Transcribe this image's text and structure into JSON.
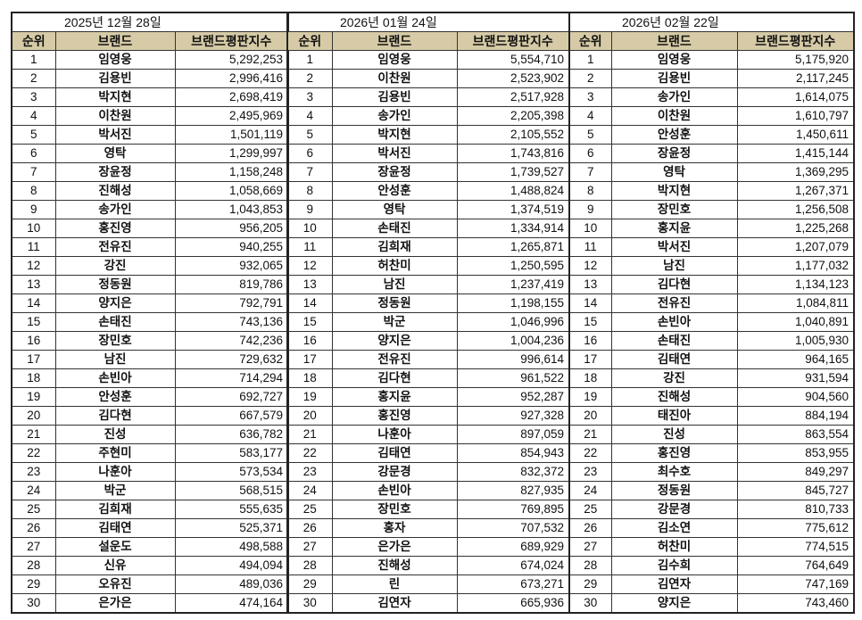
{
  "headers": {
    "rank": "순위",
    "brand": "브랜드",
    "score": "브랜드평판지수"
  },
  "header_color": "#d6cba6",
  "tables": [
    {
      "date": "2025년 12월 28일",
      "rows": [
        [
          "1",
          "임영웅",
          "5,292,253"
        ],
        [
          "2",
          "김용빈",
          "2,996,416"
        ],
        [
          "3",
          "박지현",
          "2,698,419"
        ],
        [
          "4",
          "이찬원",
          "2,495,969"
        ],
        [
          "5",
          "박서진",
          "1,501,119"
        ],
        [
          "6",
          "영탁",
          "1,299,997"
        ],
        [
          "7",
          "장윤정",
          "1,158,248"
        ],
        [
          "8",
          "진해성",
          "1,058,669"
        ],
        [
          "9",
          "송가인",
          "1,043,853"
        ],
        [
          "10",
          "홍진영",
          "956,205"
        ],
        [
          "11",
          "전유진",
          "940,255"
        ],
        [
          "12",
          "강진",
          "932,065"
        ],
        [
          "13",
          "정동원",
          "819,786"
        ],
        [
          "14",
          "양지은",
          "792,791"
        ],
        [
          "15",
          "손태진",
          "743,136"
        ],
        [
          "16",
          "장민호",
          "742,236"
        ],
        [
          "17",
          "남진",
          "729,632"
        ],
        [
          "18",
          "손빈아",
          "714,294"
        ],
        [
          "19",
          "안성훈",
          "692,727"
        ],
        [
          "20",
          "김다현",
          "667,579"
        ],
        [
          "21",
          "진성",
          "636,782"
        ],
        [
          "22",
          "주현미",
          "583,177"
        ],
        [
          "23",
          "나훈아",
          "573,534"
        ],
        [
          "24",
          "박군",
          "568,515"
        ],
        [
          "25",
          "김희재",
          "555,635"
        ],
        [
          "26",
          "김태연",
          "525,371"
        ],
        [
          "27",
          "설운도",
          "498,588"
        ],
        [
          "28",
          "신유",
          "494,094"
        ],
        [
          "29",
          "오유진",
          "489,036"
        ],
        [
          "30",
          "은가은",
          "474,164"
        ]
      ]
    },
    {
      "date": "2026년 01월 24일",
      "rows": [
        [
          "1",
          "임영웅",
          "5,554,710"
        ],
        [
          "2",
          "이찬원",
          "2,523,902"
        ],
        [
          "3",
          "김용빈",
          "2,517,928"
        ],
        [
          "4",
          "송가인",
          "2,205,398"
        ],
        [
          "5",
          "박지현",
          "2,105,552"
        ],
        [
          "6",
          "박서진",
          "1,743,816"
        ],
        [
          "7",
          "장윤정",
          "1,739,527"
        ],
        [
          "8",
          "안성훈",
          "1,488,824"
        ],
        [
          "9",
          "영탁",
          "1,374,519"
        ],
        [
          "10",
          "손태진",
          "1,334,914"
        ],
        [
          "11",
          "김희재",
          "1,265,871"
        ],
        [
          "12",
          "허찬미",
          "1,250,595"
        ],
        [
          "13",
          "남진",
          "1,237,419"
        ],
        [
          "14",
          "정동원",
          "1,198,155"
        ],
        [
          "15",
          "박군",
          "1,046,996"
        ],
        [
          "16",
          "양지은",
          "1,004,236"
        ],
        [
          "17",
          "전유진",
          "996,614"
        ],
        [
          "18",
          "김다현",
          "961,522"
        ],
        [
          "19",
          "홍지윤",
          "952,287"
        ],
        [
          "20",
          "홍진영",
          "927,328"
        ],
        [
          "21",
          "나훈아",
          "897,059"
        ],
        [
          "22",
          "김태연",
          "854,943"
        ],
        [
          "23",
          "강문경",
          "832,372"
        ],
        [
          "24",
          "손빈아",
          "827,935"
        ],
        [
          "25",
          "장민호",
          "769,895"
        ],
        [
          "26",
          "홍자",
          "707,532"
        ],
        [
          "27",
          "은가은",
          "689,929"
        ],
        [
          "28",
          "진해성",
          "674,024"
        ],
        [
          "29",
          "린",
          "673,271"
        ],
        [
          "30",
          "김연자",
          "665,936"
        ]
      ]
    },
    {
      "date": "2026년 02월 22일",
      "rows": [
        [
          "1",
          "임영웅",
          "5,175,920"
        ],
        [
          "2",
          "김용빈",
          "2,117,245"
        ],
        [
          "3",
          "송가인",
          "1,614,075"
        ],
        [
          "4",
          "이찬원",
          "1,610,797"
        ],
        [
          "5",
          "안성훈",
          "1,450,611"
        ],
        [
          "6",
          "장윤정",
          "1,415,144"
        ],
        [
          "7",
          "영탁",
          "1,369,295"
        ],
        [
          "8",
          "박지현",
          "1,267,371"
        ],
        [
          "9",
          "장민호",
          "1,256,508"
        ],
        [
          "10",
          "홍지윤",
          "1,225,268"
        ],
        [
          "11",
          "박서진",
          "1,207,079"
        ],
        [
          "12",
          "남진",
          "1,177,032"
        ],
        [
          "13",
          "김다현",
          "1,134,123"
        ],
        [
          "14",
          "전유진",
          "1,084,811"
        ],
        [
          "15",
          "손빈아",
          "1,040,891"
        ],
        [
          "16",
          "손태진",
          "1,005,930"
        ],
        [
          "17",
          "김태연",
          "964,165"
        ],
        [
          "18",
          "강진",
          "931,594"
        ],
        [
          "19",
          "진해성",
          "904,560"
        ],
        [
          "20",
          "태진아",
          "884,194"
        ],
        [
          "21",
          "진성",
          "863,554"
        ],
        [
          "22",
          "홍진영",
          "853,955"
        ],
        [
          "23",
          "최수호",
          "849,297"
        ],
        [
          "24",
          "정동원",
          "845,727"
        ],
        [
          "25",
          "강문경",
          "810,733"
        ],
        [
          "26",
          "김소연",
          "775,612"
        ],
        [
          "27",
          "허찬미",
          "774,515"
        ],
        [
          "28",
          "김수희",
          "764,649"
        ],
        [
          "29",
          "김연자",
          "747,169"
        ],
        [
          "30",
          "양지은",
          "743,460"
        ]
      ]
    }
  ]
}
